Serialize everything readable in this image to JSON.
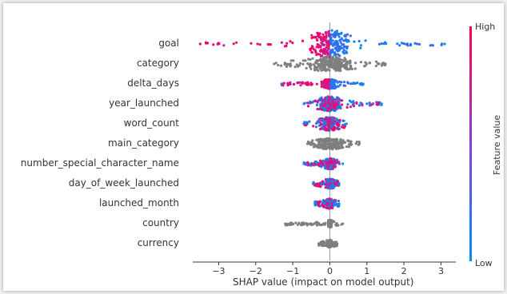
{
  "chart_data": {
    "type": "scatter",
    "subtype": "shap-beeswarm-summary",
    "features": [
      {
        "name": "goal",
        "min": -3.5,
        "max": 3.1,
        "spread": 1.9,
        "colored": true,
        "core": 0.6
      },
      {
        "name": "category",
        "min": -1.5,
        "max": 1.5,
        "spread": 0.9,
        "colored": false,
        "core": 0.8
      },
      {
        "name": "delta_days",
        "min": -1.3,
        "max": 0.9,
        "spread": 0.5,
        "colored": true,
        "core": 0.2
      },
      {
        "name": "year_launched",
        "min": -0.7,
        "max": 1.4,
        "spread": 0.9,
        "colored": true,
        "core": 0.35
      },
      {
        "name": "word_count",
        "min": -0.7,
        "max": 0.45,
        "spread": 0.8,
        "colored": true,
        "core": 0.3
      },
      {
        "name": "main_category",
        "min": -0.6,
        "max": 0.8,
        "spread": 0.6,
        "colored": false,
        "core": 0.4
      },
      {
        "name": "number_special_character_name",
        "min": -0.7,
        "max": 0.35,
        "spread": 0.6,
        "colored": true,
        "core": 0.15
      },
      {
        "name": "day_of_week_launched",
        "min": -0.45,
        "max": 0.25,
        "spread": 0.5,
        "colored": true,
        "core": 0.12
      },
      {
        "name": "launched_month",
        "min": -0.4,
        "max": 0.25,
        "spread": 0.5,
        "colored": true,
        "core": 0.1
      },
      {
        "name": "country",
        "min": -1.2,
        "max": 0.35,
        "spread": 0.3,
        "colored": false,
        "core": 0.05
      },
      {
        "name": "currency",
        "min": -0.3,
        "max": 0.2,
        "spread": 0.3,
        "colored": false,
        "core": 0.05
      }
    ],
    "xlabel": "SHAP value (impact on model output)",
    "xticks": [
      "−3",
      "−2",
      "−1",
      "0",
      "1",
      "2",
      "3"
    ],
    "xtick_values": [
      -3,
      -2,
      -1,
      0,
      1,
      2,
      3
    ],
    "xlim": [
      -3.7,
      3.4
    ],
    "colorbar": {
      "label": "Feature value",
      "high": "High",
      "low": "Low",
      "high_color": "#ff0052",
      "low_color": "#008bfb"
    },
    "gray_color": "#7f7f7f"
  }
}
